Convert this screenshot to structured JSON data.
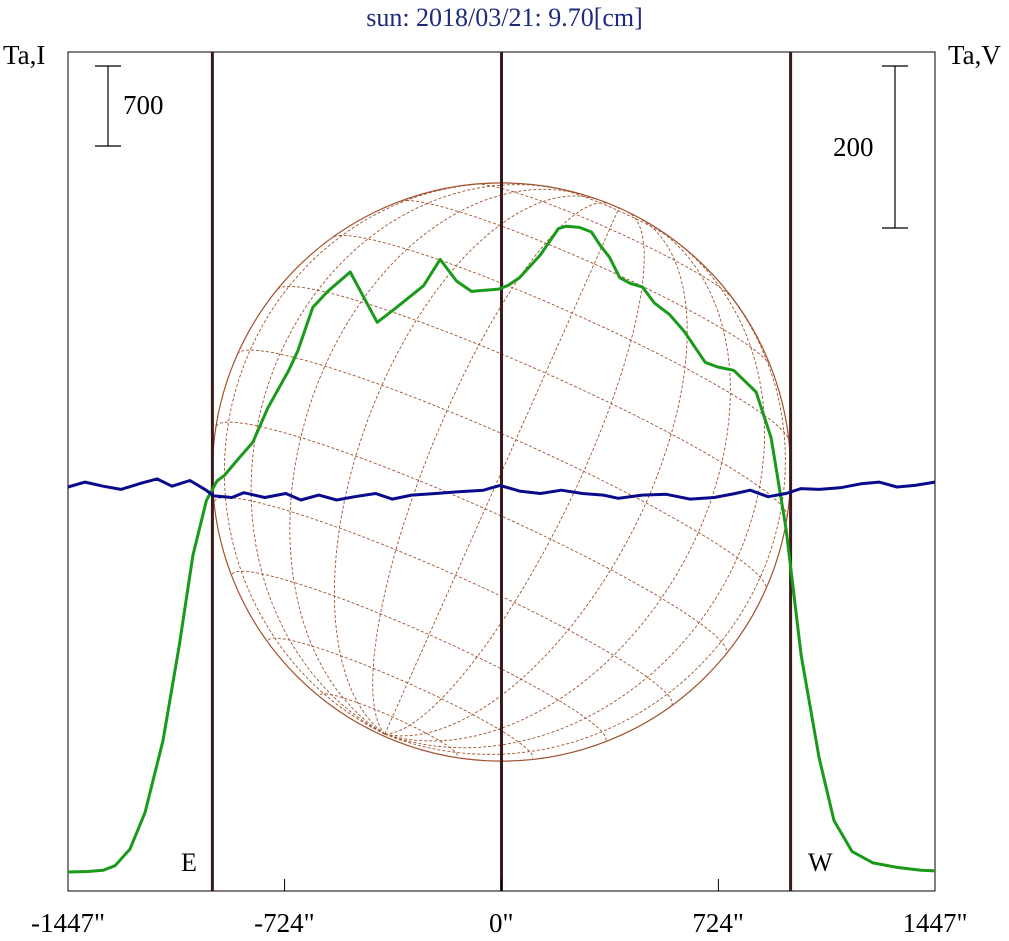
{
  "chart_data": {
    "type": "line",
    "title": "sun: 2018/03/21: 9.70[cm]",
    "left_axis_label": "Ta,I",
    "right_axis_label": "Ta,V",
    "scale_bar_I": "700",
    "scale_bar_V": "200",
    "xlim": [
      -1447,
      1447
    ],
    "x_ticks": [
      -1447,
      -724,
      0,
      724,
      1447
    ],
    "x_tick_labels": [
      "-1447\"",
      "-724\"",
      "0\"",
      "724\"",
      "1447\""
    ],
    "limb_labels": {
      "east": "E",
      "west": "W"
    },
    "solar_limb_arcsec": 965,
    "colors": {
      "stokes_I": "#1a9a1a",
      "stokes_V": "#0a0a8c",
      "limb_lines": "#3a1a1a",
      "solar_disk": "#a0522d",
      "title": "#1e2a7a"
    },
    "series": [
      {
        "key": "I",
        "units": "relative (scale bar = 700)",
        "points": [
          [
            -1447,
            0
          ],
          [
            -1380,
            4
          ],
          [
            -1330,
            15
          ],
          [
            -1290,
            55
          ],
          [
            -1240,
            200
          ],
          [
            -1190,
            520
          ],
          [
            -1130,
            1150
          ],
          [
            -1075,
            1990
          ],
          [
            -1030,
            2770
          ],
          [
            -985,
            3250
          ],
          [
            -950,
            3420
          ],
          [
            -925,
            3470
          ],
          [
            -880,
            3610
          ],
          [
            -830,
            3760
          ],
          [
            -780,
            4060
          ],
          [
            -710,
            4390
          ],
          [
            -680,
            4560
          ],
          [
            -630,
            4940
          ],
          [
            -580,
            5080
          ],
          [
            -505,
            5250
          ],
          [
            -415,
            4810
          ],
          [
            -355,
            4930
          ],
          [
            -260,
            5130
          ],
          [
            -205,
            5360
          ],
          [
            -150,
            5170
          ],
          [
            -100,
            5080
          ],
          [
            -10,
            5100
          ],
          [
            20,
            5130
          ],
          [
            60,
            5200
          ],
          [
            130,
            5400
          ],
          [
            190,
            5630
          ],
          [
            215,
            5650
          ],
          [
            260,
            5640
          ],
          [
            300,
            5600
          ],
          [
            330,
            5480
          ],
          [
            360,
            5380
          ],
          [
            395,
            5200
          ],
          [
            430,
            5150
          ],
          [
            470,
            5120
          ],
          [
            510,
            4980
          ],
          [
            560,
            4880
          ],
          [
            610,
            4730
          ],
          [
            680,
            4460
          ],
          [
            720,
            4420
          ],
          [
            775,
            4390
          ],
          [
            850,
            4200
          ],
          [
            900,
            3800
          ],
          [
            950,
            3000
          ],
          [
            1000,
            1900
          ],
          [
            1060,
            1000
          ],
          [
            1110,
            450
          ],
          [
            1170,
            180
          ],
          [
            1240,
            80
          ],
          [
            1320,
            40
          ],
          [
            1400,
            15
          ],
          [
            1447,
            10
          ]
        ]
      },
      {
        "key": "V",
        "units": "relative (scale bar = 200)",
        "points": [
          [
            -1447,
            0
          ],
          [
            -1390,
            6
          ],
          [
            -1330,
            1
          ],
          [
            -1270,
            -3
          ],
          [
            -1200,
            5
          ],
          [
            -1150,
            10
          ],
          [
            -1100,
            1
          ],
          [
            -1040,
            8
          ],
          [
            -990,
            -3
          ],
          [
            -960,
            -11
          ],
          [
            -900,
            -13
          ],
          [
            -860,
            -7
          ],
          [
            -790,
            -13
          ],
          [
            -720,
            -8
          ],
          [
            -670,
            -16
          ],
          [
            -610,
            -10
          ],
          [
            -550,
            -16
          ],
          [
            -490,
            -12
          ],
          [
            -420,
            -8
          ],
          [
            -365,
            -15
          ],
          [
            -300,
            -10
          ],
          [
            -220,
            -8
          ],
          [
            -150,
            -6
          ],
          [
            -60,
            -4
          ],
          [
            -5,
            2
          ],
          [
            60,
            -5
          ],
          [
            130,
            -8
          ],
          [
            200,
            -4
          ],
          [
            270,
            -8
          ],
          [
            340,
            -10
          ],
          [
            390,
            -14
          ],
          [
            470,
            -10
          ],
          [
            550,
            -9
          ],
          [
            630,
            -15
          ],
          [
            710,
            -13
          ],
          [
            780,
            -8
          ],
          [
            830,
            -4
          ],
          [
            890,
            -12
          ],
          [
            950,
            -8
          ],
          [
            1000,
            -2
          ],
          [
            1060,
            -3
          ],
          [
            1130,
            -1
          ],
          [
            1200,
            4
          ],
          [
            1260,
            6
          ],
          [
            1320,
            0
          ],
          [
            1380,
            2
          ],
          [
            1447,
            6
          ]
        ]
      }
    ]
  }
}
